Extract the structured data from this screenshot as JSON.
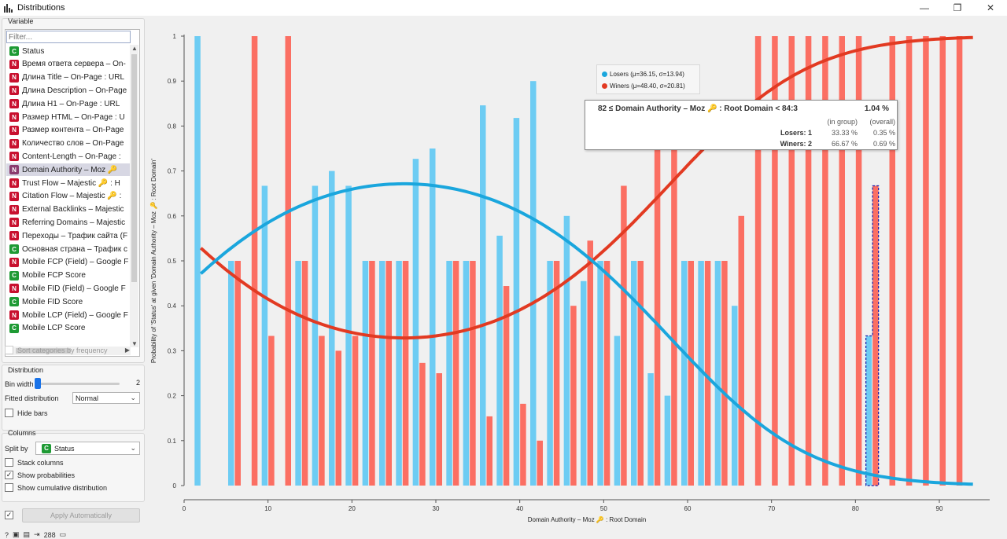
{
  "window": {
    "title": "Distributions",
    "buttons": [
      "—",
      "❐",
      "✕"
    ]
  },
  "variable": {
    "group_title": "Variable",
    "filter_placeholder": "Filter...",
    "items": [
      {
        "type": "C",
        "label": "Status"
      },
      {
        "type": "N",
        "label": "Время ответа сервера – On-"
      },
      {
        "type": "N",
        "label": "Длина Title – On-Page : URL"
      },
      {
        "type": "N",
        "label": "Длина Description – On-Page"
      },
      {
        "type": "N",
        "label": "Длина H1 – On-Page : URL"
      },
      {
        "type": "N",
        "label": "Размер HTML – On-Page : U"
      },
      {
        "type": "N",
        "label": "Размер контента – On-Page"
      },
      {
        "type": "N",
        "label": "Количество слов – On-Page"
      },
      {
        "type": "N",
        "label": "Content-Length – On-Page :"
      },
      {
        "type": "N",
        "label": "Domain Authority – Moz 🔑",
        "selected": true
      },
      {
        "type": "N",
        "label": "Trust Flow – Majestic 🔑 : H"
      },
      {
        "type": "N",
        "label": "Citation Flow – Majestic 🔑 :"
      },
      {
        "type": "N",
        "label": "External Backlinks – Majestic"
      },
      {
        "type": "N",
        "label": "Referring Domains – Majestic"
      },
      {
        "type": "N",
        "label": "Переходы – Трафик сайта (F"
      },
      {
        "type": "C",
        "label": "Основная страна – Трафик с"
      },
      {
        "type": "N",
        "label": "Mobile FCP (Field) – Google F"
      },
      {
        "type": "C",
        "label": "Mobile FCP Score"
      },
      {
        "type": "N",
        "label": "Mobile FID (Field) – Google F"
      },
      {
        "type": "C",
        "label": "Mobile FID Score"
      },
      {
        "type": "N",
        "label": "Mobile LCP (Field) – Google F"
      },
      {
        "type": "C",
        "label": "Mobile LCP Score"
      }
    ],
    "sort_label": "Sort categories by frequency"
  },
  "distribution": {
    "group_title": "Distribution",
    "bin_width_label": "Bin width",
    "bin_width_value": "2",
    "fitted_label": "Fitted distribution",
    "fitted_value": "Normal",
    "hide_bars_label": "Hide bars"
  },
  "columns": {
    "group_title": "Columns",
    "split_by_label": "Split by",
    "split_by_value": "Status",
    "stack_label": "Stack columns",
    "show_prob_label": "Show probabilities",
    "show_cum_label": "Show cumulative distribution"
  },
  "footer": {
    "apply_label": "Apply Automatically",
    "count": "288"
  },
  "legend": {
    "losers": "Losers (μ=36.15, σ=13.94)",
    "winers": "Winers (μ=48.40, σ=20.81)"
  },
  "tooltip": {
    "header": "82 ≤ Domain Authority – Moz 🔑 : Root Domain < 84:3",
    "header_value": "1.04 %",
    "col_in_group": "(in group)",
    "col_overall": "(overall)",
    "rows": [
      {
        "label": "Losers: 1",
        "in_group": "33.33 %",
        "overall": "0.35 %"
      },
      {
        "label": "Winers: 2",
        "in_group": "66.67 %",
        "overall": "0.69 %"
      }
    ]
  },
  "colors": {
    "losers": "#6dccf3",
    "losers_curve": "#1aa6dd",
    "winers": "#fb6f63",
    "winers_curve": "#e23a22",
    "highlight": "#1a1aa8"
  },
  "chart_data": {
    "type": "bar",
    "xlabel": "Domain Authority – Moz 🔑 : Root Domain",
    "ylabel": "Probability of 'Status' at given 'Domain Authority – Moz 🔑 : Root Domain'",
    "xlim": [
      0,
      96
    ],
    "ylim": [
      0,
      1
    ],
    "x_ticks": [
      0,
      10,
      20,
      30,
      40,
      50,
      60,
      70,
      80,
      90
    ],
    "y_ticks": [
      0,
      0.1,
      0.2,
      0.3,
      0.4,
      0.5,
      0.6,
      0.7,
      0.8,
      0.9,
      1
    ],
    "x_bins": [
      2,
      6,
      8,
      10,
      12,
      14,
      16,
      18,
      20,
      22,
      24,
      26,
      28,
      30,
      32,
      34,
      36,
      38,
      40,
      42,
      44,
      46,
      48,
      50,
      52,
      54,
      56,
      58,
      60,
      62,
      64,
      66,
      68,
      70,
      72,
      74,
      76,
      78,
      80,
      82,
      84,
      86,
      88,
      90,
      92
    ],
    "series": [
      {
        "name": "Losers",
        "values": [
          1,
          0.5,
          0,
          0.667,
          0,
          0.5,
          0.667,
          0.7,
          0.667,
          0.5,
          0.5,
          0.5,
          0.727,
          0.75,
          0.5,
          0.5,
          0.846,
          0.556,
          0.818,
          0.9,
          0.5,
          0.6,
          0.455,
          0.5,
          0.333,
          0.5,
          0.25,
          0.2,
          0.5,
          0.5,
          0.5,
          0.4,
          0,
          0,
          0,
          0,
          0,
          0,
          0,
          0.333,
          0,
          0,
          0,
          0,
          0
        ]
      },
      {
        "name": "Winers",
        "values": [
          0,
          0.5,
          1,
          0.333,
          1,
          0.5,
          0.333,
          0.3,
          0.333,
          0.5,
          0.5,
          0.5,
          0.273,
          0.25,
          0.5,
          0.5,
          0.154,
          0.444,
          0.182,
          0.1,
          0.5,
          0.4,
          0.545,
          0.5,
          0.667,
          0.5,
          0.75,
          0.8,
          0.5,
          0.5,
          0.5,
          0.6,
          1,
          1,
          1,
          1,
          1,
          1,
          1,
          0.667,
          1,
          1,
          1,
          1,
          1
        ]
      }
    ],
    "fitted": [
      {
        "name": "Losers",
        "mu": 36.15,
        "sigma": 13.94
      },
      {
        "name": "Winers",
        "mu": 48.4,
        "sigma": 20.81
      }
    ],
    "highlight_bin": [
      82,
      84
    ]
  }
}
